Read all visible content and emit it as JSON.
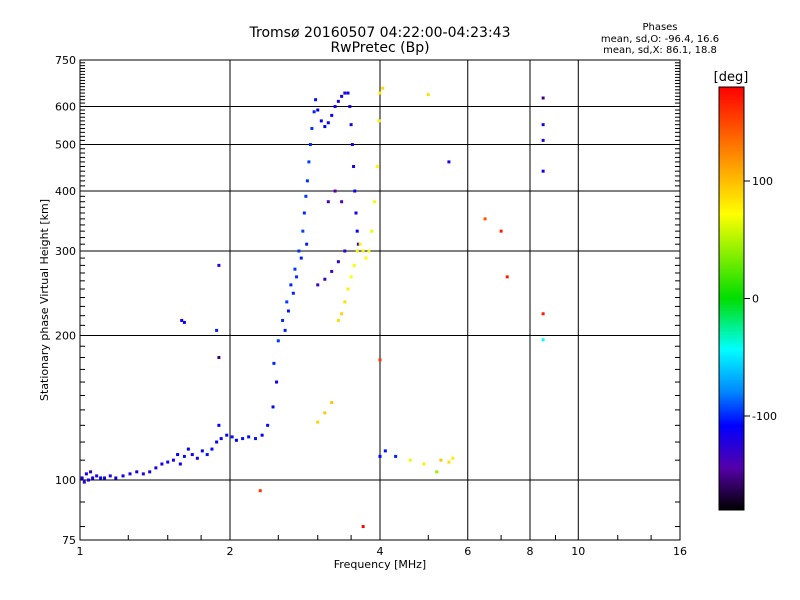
{
  "chart_data": {
    "type": "scatter",
    "title": "Tromsø 20160507 04:22:00-04:23:43",
    "subtitle": "RwPretec (Bp)",
    "phases_title": "Phases",
    "phases_stats": [
      "mean, sd,O: -96.4, 16.6",
      "mean, sd,X:  86.1, 18.8"
    ],
    "xlabel": "Frequency [MHz]",
    "ylabel": "Stationary phase Virtual Height [km]",
    "x_scale": "log2",
    "y_scale": "log",
    "xlim": [
      1,
      16
    ],
    "ylim": [
      75,
      750
    ],
    "x_ticks": [
      1,
      2,
      4,
      6,
      8,
      10,
      16
    ],
    "y_ticks": [
      75,
      100,
      200,
      300,
      400,
      500,
      600,
      750
    ],
    "grid": true,
    "colorbar": {
      "label": "[deg]",
      "range": [
        -180,
        180
      ],
      "ticks": [
        100,
        0,
        -100
      ]
    },
    "series": [
      {
        "trace": "E and low-height trace",
        "points": [
          [
            1.01,
            101,
            -112
          ],
          [
            1.02,
            99,
            -115
          ],
          [
            1.03,
            103,
            -108
          ],
          [
            1.04,
            100,
            -110
          ],
          [
            1.05,
            104,
            -118
          ],
          [
            1.06,
            101,
            -105
          ],
          [
            1.08,
            102,
            -112
          ],
          [
            1.1,
            101,
            -100
          ],
          [
            1.12,
            101,
            -108
          ],
          [
            1.15,
            102,
            -115
          ],
          [
            1.18,
            101,
            -110
          ],
          [
            1.22,
            102,
            -106
          ],
          [
            1.26,
            103,
            -112
          ],
          [
            1.3,
            104,
            -108
          ],
          [
            1.34,
            103,
            -116
          ],
          [
            1.38,
            104,
            -110
          ],
          [
            1.42,
            106,
            -112
          ],
          [
            1.46,
            108,
            -110
          ],
          [
            1.5,
            109,
            -106
          ],
          [
            1.54,
            110,
            -112
          ],
          [
            1.57,
            113,
            -100
          ],
          [
            1.59,
            108,
            -104
          ],
          [
            1.62,
            112,
            -96
          ],
          [
            1.65,
            116,
            -100
          ],
          [
            1.68,
            113,
            -108
          ],
          [
            1.72,
            111,
            -110
          ],
          [
            1.76,
            115,
            -102
          ],
          [
            1.8,
            113,
            -96
          ],
          [
            1.84,
            116,
            -98
          ],
          [
            1.88,
            120,
            -104
          ],
          [
            1.92,
            122,
            -100
          ],
          [
            1.97,
            124,
            -98
          ],
          [
            2.02,
            123,
            -95
          ],
          [
            2.06,
            121,
            -100
          ],
          [
            2.12,
            122,
            -96
          ],
          [
            2.18,
            123,
            -98
          ],
          [
            2.25,
            122,
            -95
          ],
          [
            2.32,
            124,
            -100
          ],
          [
            2.38,
            130,
            -96
          ],
          [
            2.44,
            142,
            -98
          ],
          [
            2.48,
            160,
            -102
          ]
        ]
      },
      {
        "trace": "O-mode F trace",
        "points": [
          [
            2.45,
            175,
            -90
          ],
          [
            2.5,
            195,
            -85
          ],
          [
            2.55,
            215,
            -88
          ],
          [
            2.6,
            235,
            -82
          ],
          [
            2.65,
            255,
            -90
          ],
          [
            2.7,
            275,
            -84
          ],
          [
            2.75,
            300,
            -86
          ],
          [
            2.8,
            330,
            -80
          ],
          [
            2.82,
            360,
            -88
          ],
          [
            2.84,
            390,
            -84
          ],
          [
            2.86,
            420,
            -86
          ],
          [
            2.88,
            460,
            -82
          ],
          [
            2.9,
            500,
            -88
          ],
          [
            2.92,
            540,
            -85
          ],
          [
            2.85,
            310,
            -90
          ],
          [
            2.78,
            290,
            -92
          ],
          [
            2.72,
            265,
            -86
          ],
          [
            2.68,
            245,
            -90
          ],
          [
            2.62,
            225,
            -94
          ],
          [
            2.58,
            205,
            -92
          ],
          [
            2.95,
            585,
            -90
          ],
          [
            2.97,
            620,
            -95
          ],
          [
            3.0,
            590,
            -100
          ],
          [
            3.05,
            560,
            -105
          ],
          [
            3.1,
            545,
            -100
          ],
          [
            3.15,
            555,
            -108
          ],
          [
            3.2,
            575,
            -104
          ],
          [
            3.25,
            600,
            -110
          ],
          [
            3.3,
            615,
            -112
          ],
          [
            3.35,
            630,
            -110
          ],
          [
            3.4,
            640,
            -115
          ],
          [
            3.45,
            640,
            -108
          ],
          [
            3.48,
            600,
            -112
          ],
          [
            3.5,
            550,
            -110
          ],
          [
            3.52,
            500,
            -106
          ],
          [
            3.54,
            450,
            -110
          ],
          [
            3.56,
            400,
            -104
          ],
          [
            3.58,
            360,
            -108
          ],
          [
            3.6,
            330,
            -100
          ],
          [
            3.62,
            310,
            -104
          ],
          [
            3.4,
            300,
            -120
          ],
          [
            3.3,
            285,
            -125
          ],
          [
            3.2,
            272,
            -130
          ],
          [
            3.1,
            262,
            -132
          ],
          [
            3.0,
            255,
            -128
          ],
          [
            3.15,
            380,
            -135
          ],
          [
            3.25,
            400,
            -140
          ],
          [
            3.35,
            380,
            -135
          ]
        ]
      },
      {
        "trace": "X-mode F trace",
        "points": [
          [
            3.45,
            250,
            95
          ],
          [
            3.5,
            265,
            90
          ],
          [
            3.55,
            280,
            88
          ],
          [
            3.6,
            300,
            85
          ],
          [
            3.65,
            310,
            92
          ],
          [
            3.7,
            300,
            95
          ],
          [
            3.75,
            290,
            90
          ],
          [
            3.8,
            300,
            86
          ],
          [
            3.85,
            330,
            84
          ],
          [
            3.9,
            380,
            88
          ],
          [
            3.95,
            450,
            92
          ],
          [
            3.98,
            560,
            95
          ],
          [
            4.0,
            640,
            96
          ],
          [
            3.4,
            235,
            100
          ],
          [
            3.35,
            222,
            104
          ],
          [
            3.3,
            215,
            100
          ],
          [
            4.05,
            655,
            102
          ],
          [
            5.0,
            635,
            100
          ],
          [
            3.2,
            145,
            110
          ],
          [
            3.1,
            138,
            108
          ],
          [
            3.0,
            132,
            105
          ]
        ]
      },
      {
        "trace": "scattered echoes",
        "points": [
          [
            4.0,
            112,
            -100
          ],
          [
            4.1,
            115,
            -95
          ],
          [
            4.3,
            112,
            -90
          ],
          [
            4.6,
            110,
            85
          ],
          [
            4.9,
            108,
            95
          ],
          [
            5.3,
            110,
            110
          ],
          [
            5.5,
            109,
            100
          ],
          [
            5.6,
            111,
            95
          ],
          [
            5.2,
            104,
            60
          ],
          [
            6.5,
            350,
            150
          ],
          [
            7.0,
            330,
            170
          ],
          [
            7.2,
            265,
            170
          ],
          [
            8.5,
            625,
            -150
          ],
          [
            8.5,
            550,
            -110
          ],
          [
            8.5,
            510,
            -115
          ],
          [
            8.5,
            440,
            -108
          ],
          [
            8.5,
            222,
            170
          ],
          [
            8.5,
            196,
            -20
          ],
          [
            3.7,
            80,
            180
          ],
          [
            2.3,
            95,
            160
          ],
          [
            5.5,
            460,
            -110
          ],
          [
            4.0,
            178,
            160
          ],
          [
            1.9,
            180,
            -150
          ],
          [
            1.9,
            280,
            -120
          ],
          [
            1.88,
            205,
            -90
          ],
          [
            1.9,
            130,
            -100
          ],
          [
            1.6,
            215,
            -108
          ],
          [
            1.62,
            213,
            -104
          ]
        ]
      }
    ]
  }
}
